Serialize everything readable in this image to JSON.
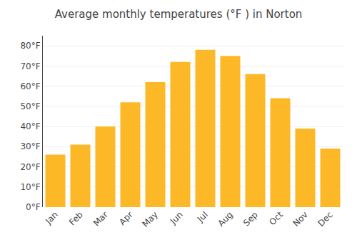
{
  "chart_data": {
    "type": "bar",
    "title": "Average monthly temperatures (°F ) in Norton",
    "categories": [
      "Jan",
      "Feb",
      "Mar",
      "Apr",
      "May",
      "Jun",
      "Jul",
      "Aug",
      "Sep",
      "Oct",
      "Nov",
      "Dec"
    ],
    "values": [
      26,
      31,
      40,
      52,
      62,
      72,
      78,
      75,
      66,
      54,
      39,
      29
    ],
    "color": "#FDB827",
    "ylim": [
      0,
      85
    ],
    "yticks": [
      {
        "value": 0,
        "label": "0°F"
      },
      {
        "value": 10,
        "label": "10°F"
      },
      {
        "value": 20,
        "label": "20°F"
      },
      {
        "value": 30,
        "label": "30°F"
      },
      {
        "value": 40,
        "label": "40°F"
      },
      {
        "value": 50,
        "label": "50°F"
      },
      {
        "value": 60,
        "label": "60°F"
      },
      {
        "value": 70,
        "label": "70°F"
      },
      {
        "value": 80,
        "label": "80°F"
      }
    ],
    "grid": true
  }
}
